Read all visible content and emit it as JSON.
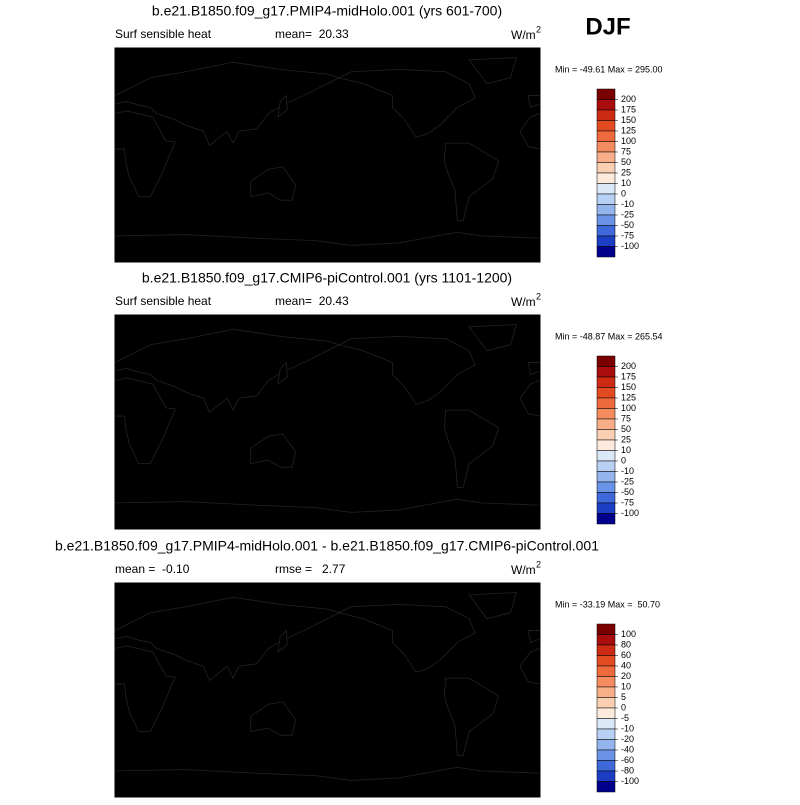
{
  "season": "DJF",
  "panels": [
    {
      "title": "b.e21.B1850.f09_g17.PMIP4-midHolo.001 (yrs 601-700)",
      "left_label": "Surf sensible heat",
      "center_label": "mean=  20.33",
      "units": "W/m",
      "units_exponent": "2",
      "minmax": "Min = -49.61 Max = 295.00",
      "colorbar": {
        "levels": [
          200,
          175,
          150,
          125,
          100,
          75,
          50,
          25,
          10,
          0,
          -10,
          -25,
          -50,
          -75,
          -100
        ],
        "colors": [
          "#7a0000",
          "#a80c0c",
          "#cc2a12",
          "#e24a22",
          "#ee6a3c",
          "#f48c60",
          "#f8ae88",
          "#fbd0b2",
          "#fdeadc",
          "#dbe8f8",
          "#b8d0f4",
          "#94b4ee",
          "#6a92e6",
          "#3f68da",
          "#1c3ec4",
          "#00008c"
        ]
      }
    },
    {
      "title": "b.e21.B1850.f09_g17.CMIP6-piControl.001 (yrs 1101-1200)",
      "left_label": "Surf sensible heat",
      "center_label": "mean=  20.43",
      "units": "W/m",
      "units_exponent": "2",
      "minmax": "Min = -48.87 Max = 265.54",
      "colorbar": {
        "levels": [
          200,
          175,
          150,
          125,
          100,
          75,
          50,
          25,
          10,
          0,
          -10,
          -25,
          -50,
          -75,
          -100
        ],
        "colors": [
          "#7a0000",
          "#a80c0c",
          "#cc2a12",
          "#e24a22",
          "#ee6a3c",
          "#f48c60",
          "#f8ae88",
          "#fbd0b2",
          "#fdeadc",
          "#dbe8f8",
          "#b8d0f4",
          "#94b4ee",
          "#6a92e6",
          "#3f68da",
          "#1c3ec4",
          "#00008c"
        ]
      }
    },
    {
      "title": "b.e21.B1850.f09_g17.PMIP4-midHolo.001 - b.e21.B1850.f09_g17.CMIP6-piControl.001",
      "left_label": "mean =  -0.10",
      "center_label": "rmse =   2.77",
      "units": "W/m",
      "units_exponent": "2",
      "minmax": "Min = -33.19 Max =  50.70",
      "colorbar": {
        "levels": [
          100,
          80,
          60,
          40,
          20,
          10,
          5,
          0,
          -5,
          -10,
          -20,
          -40,
          -60,
          -80,
          -100
        ],
        "colors": [
          "#7a0000",
          "#a80c0c",
          "#cc2a12",
          "#e24a22",
          "#ee6a3c",
          "#f48c60",
          "#f8ae88",
          "#fbd0b2",
          "#fdeadc",
          "#dbe8f8",
          "#b8d0f4",
          "#94b4ee",
          "#6a92e6",
          "#3f68da",
          "#1c3ec4",
          "#00008c"
        ]
      }
    }
  ]
}
